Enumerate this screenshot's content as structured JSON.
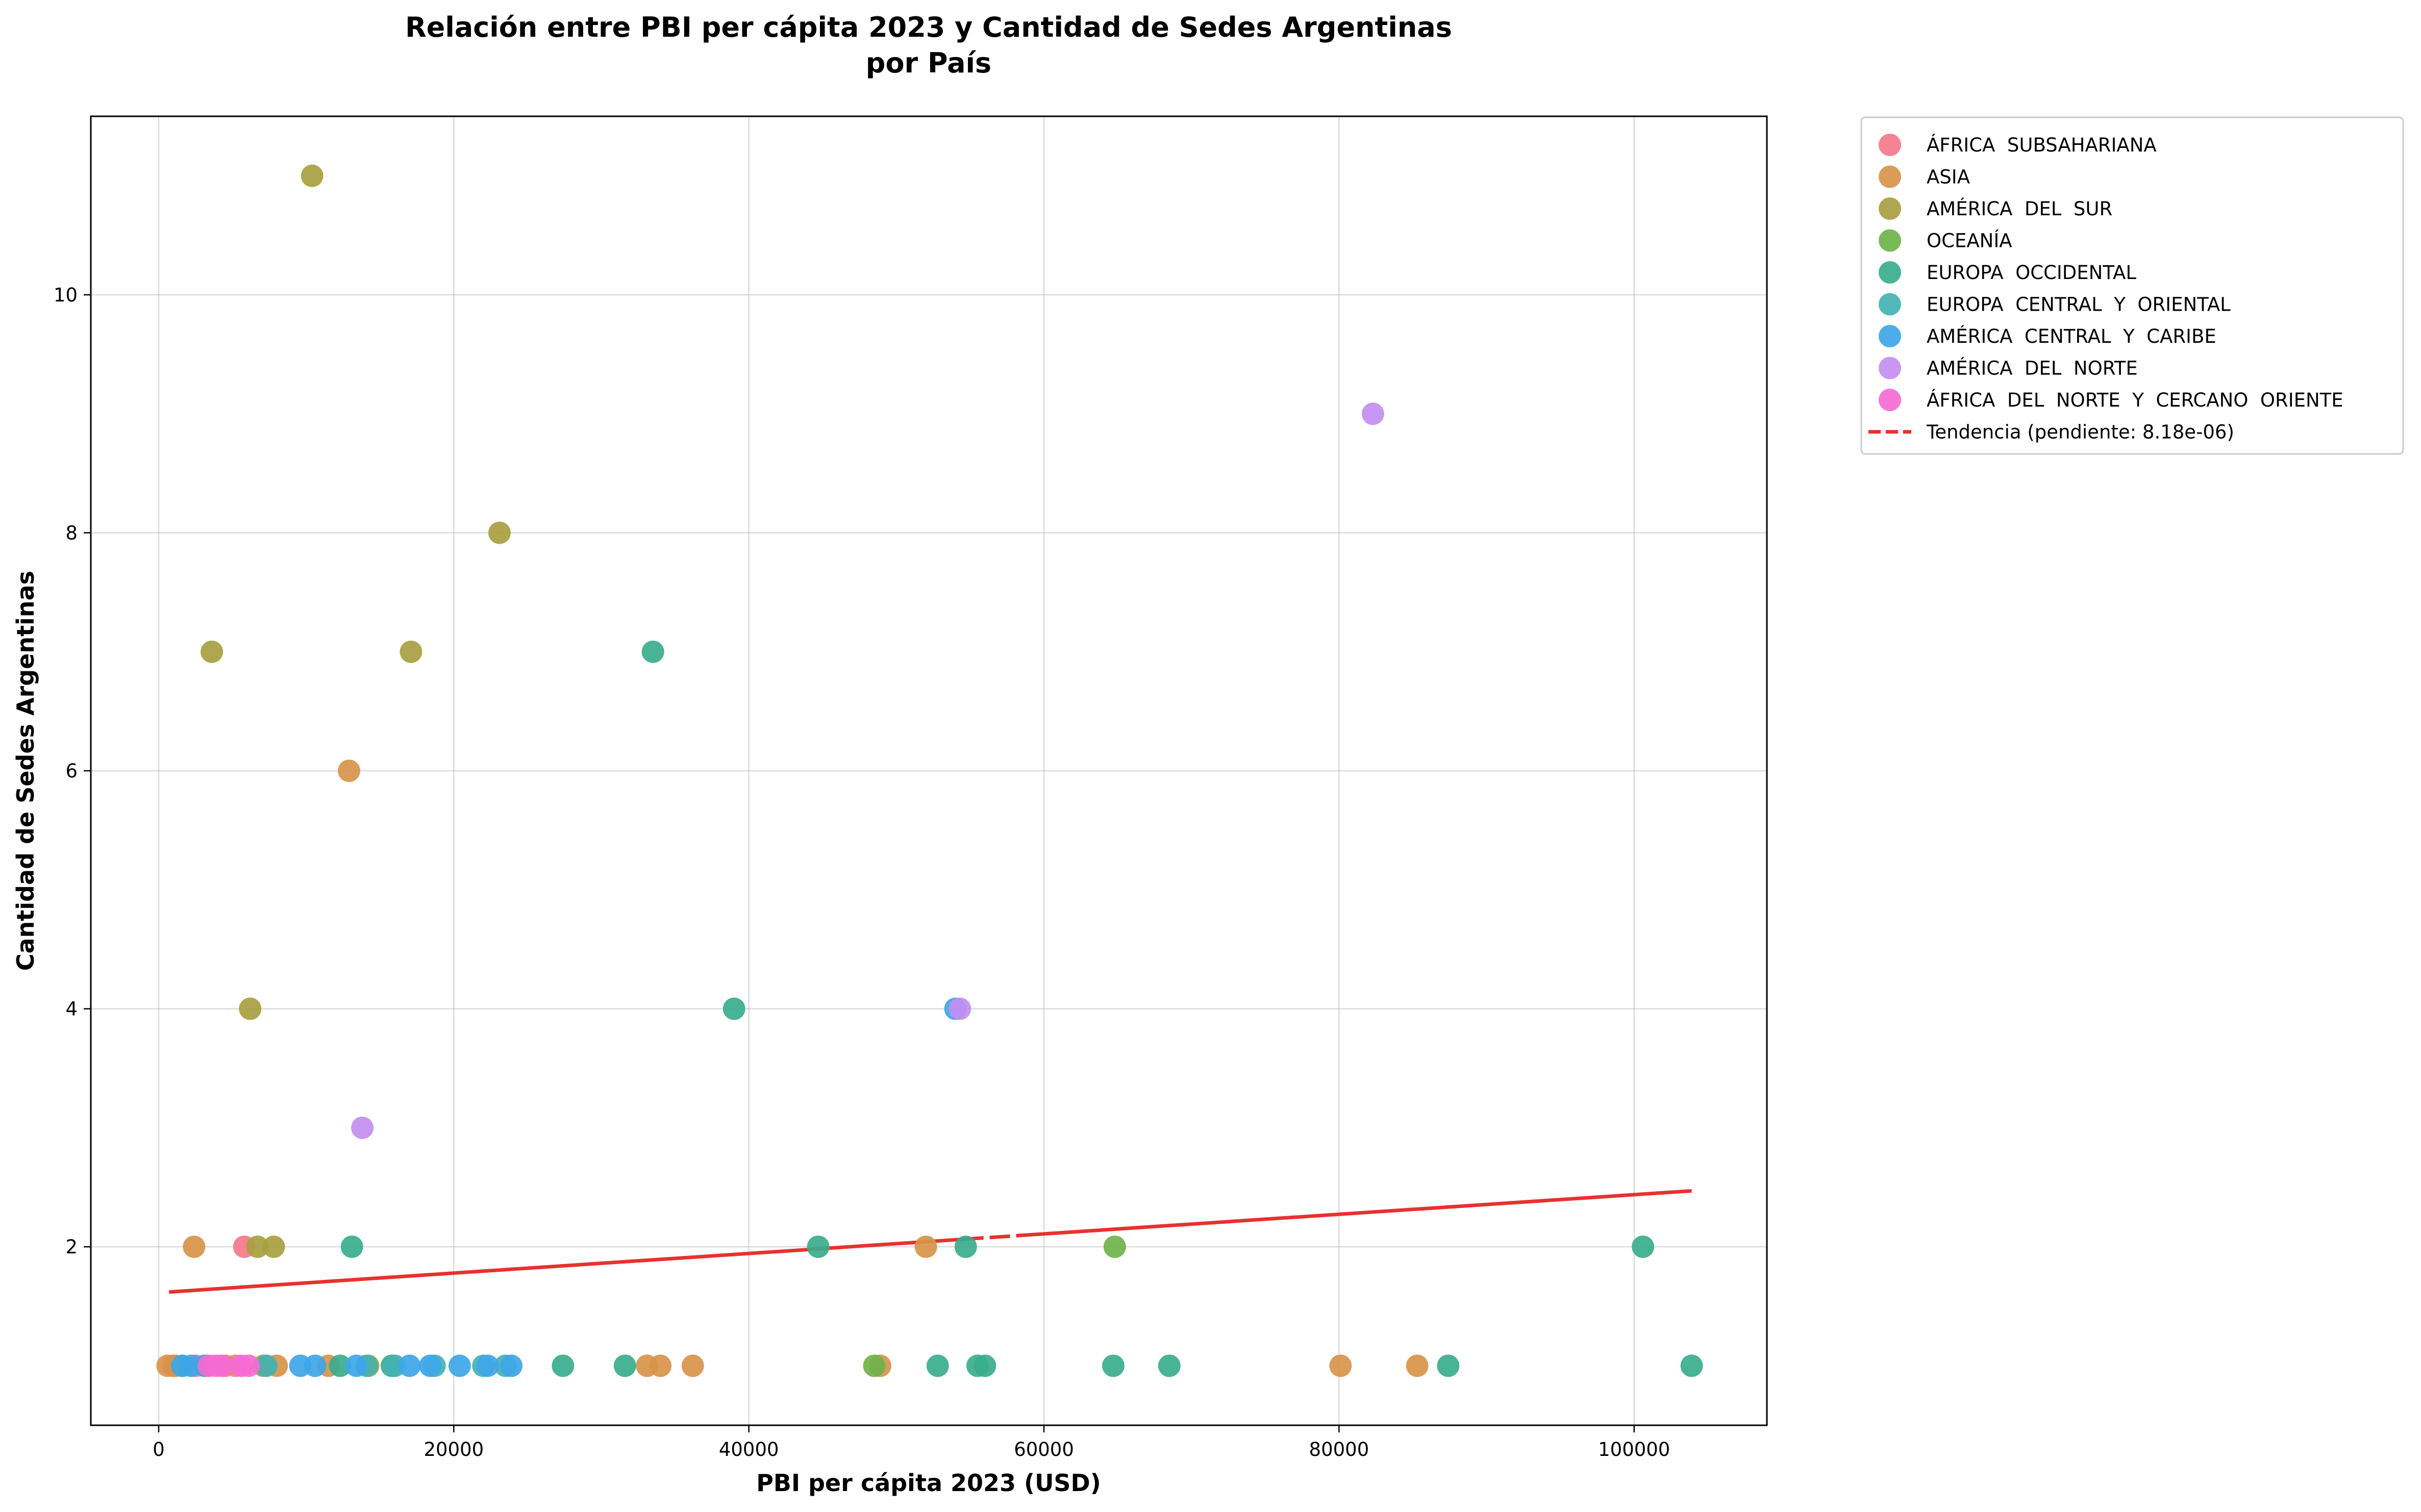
{
  "chart_data": {
    "type": "scatter",
    "title": "Relación entre PBI per cápita 2023 y Cantidad de Sedes Argentinas",
    "subtitle": "por País",
    "xlabel": "PBI per cápita 2023 (USD)",
    "ylabel": "Cantidad de Sedes Argentinas",
    "xlim": [
      -4600,
      109000
    ],
    "ylim": [
      0.5,
      11.5
    ],
    "x_ticks": [
      0,
      20000,
      40000,
      60000,
      80000,
      100000
    ],
    "x_tick_labels": [
      "0",
      "20000",
      "40000",
      "60000",
      "80000",
      "100000"
    ],
    "y_ticks": [
      2,
      4,
      6,
      8,
      10
    ],
    "y_tick_labels": [
      "2",
      "4",
      "6",
      "8",
      "10"
    ],
    "grid": true,
    "legend_position": "outside-top-right",
    "series": [
      {
        "name": "ÁFRICA  SUBSAHARIANA",
        "color": "#f37a8a",
        "points": [
          [
            1000,
            1
          ],
          [
            2500,
            1
          ],
          [
            5800,
            2
          ],
          [
            5200,
            1
          ]
        ]
      },
      {
        "name": "ASIA",
        "color": "#d8944a",
        "points": [
          [
            2400,
            2
          ],
          [
            12900,
            6
          ],
          [
            600,
            1
          ],
          [
            1100,
            1
          ],
          [
            4500,
            1
          ],
          [
            8000,
            1
          ],
          [
            11500,
            1
          ],
          [
            33100,
            1
          ],
          [
            34000,
            1
          ],
          [
            36200,
            1
          ],
          [
            48900,
            1
          ],
          [
            52000,
            2
          ],
          [
            80100,
            1
          ],
          [
            85300,
            1
          ]
        ]
      },
      {
        "name": "AMÉRICA  DEL  SUR",
        "color": "#a8a040",
        "points": [
          [
            10400,
            11
          ],
          [
            23100,
            8
          ],
          [
            3600,
            7
          ],
          [
            17100,
            7
          ],
          [
            6200,
            4
          ],
          [
            6700,
            2
          ],
          [
            7800,
            2
          ],
          [
            1600,
            1
          ],
          [
            3200,
            1
          ],
          [
            7100,
            1
          ],
          [
            14200,
            1
          ]
        ]
      },
      {
        "name": "OCEANÍA",
        "color": "#6fb34a",
        "points": [
          [
            64800,
            2
          ],
          [
            48500,
            1
          ]
        ]
      },
      {
        "name": "EUROPA  OCCIDENTAL",
        "color": "#3aac8c",
        "points": [
          [
            33500,
            7
          ],
          [
            39000,
            4
          ],
          [
            13100,
            2
          ],
          [
            44700,
            2
          ],
          [
            54700,
            2
          ],
          [
            100600,
            2
          ],
          [
            12300,
            1
          ],
          [
            15800,
            1
          ],
          [
            27400,
            1
          ],
          [
            31600,
            1
          ],
          [
            52800,
            1
          ],
          [
            55500,
            1
          ],
          [
            56000,
            1
          ],
          [
            64700,
            1
          ],
          [
            68500,
            1
          ],
          [
            87400,
            1
          ],
          [
            103900,
            1
          ]
        ]
      },
      {
        "name": "EUROPA  CENTRAL  Y  ORIENTAL",
        "color": "#44b2b2",
        "points": [
          [
            7300,
            1
          ],
          [
            14100,
            1
          ],
          [
            16000,
            1
          ],
          [
            18700,
            1
          ],
          [
            22000,
            1
          ],
          [
            23500,
            1
          ]
        ]
      },
      {
        "name": "AMÉRICA  CENTRAL  Y  CARIBE",
        "color": "#3ea6e8",
        "points": [
          [
            54000,
            4
          ],
          [
            1600,
            1
          ],
          [
            2200,
            1
          ],
          [
            3100,
            1
          ],
          [
            9600,
            1
          ],
          [
            10600,
            1
          ],
          [
            13400,
            1
          ],
          [
            17000,
            1
          ],
          [
            18400,
            1
          ],
          [
            20400,
            1
          ],
          [
            22300,
            1
          ],
          [
            23900,
            1
          ]
        ]
      },
      {
        "name": "AMÉRICA  DEL  NORTE",
        "color": "#c28ef0",
        "points": [
          [
            82300,
            9
          ],
          [
            54300,
            4
          ],
          [
            13800,
            3
          ]
        ]
      },
      {
        "name": "ÁFRICA  DEL  NORTE  Y  CERCANO  ORIENTE",
        "color": "#f56ad4",
        "points": [
          [
            3400,
            1
          ],
          [
            3900,
            1
          ],
          [
            4300,
            1
          ],
          [
            5600,
            1
          ],
          [
            6100,
            1
          ]
        ]
      }
    ],
    "trendline": {
      "name": "Tendencia (pendiente: 8.18e-06)",
      "color": "#e8312f",
      "x": [
        700,
        103900
      ],
      "y": [
        1.62,
        2.47
      ]
    }
  }
}
